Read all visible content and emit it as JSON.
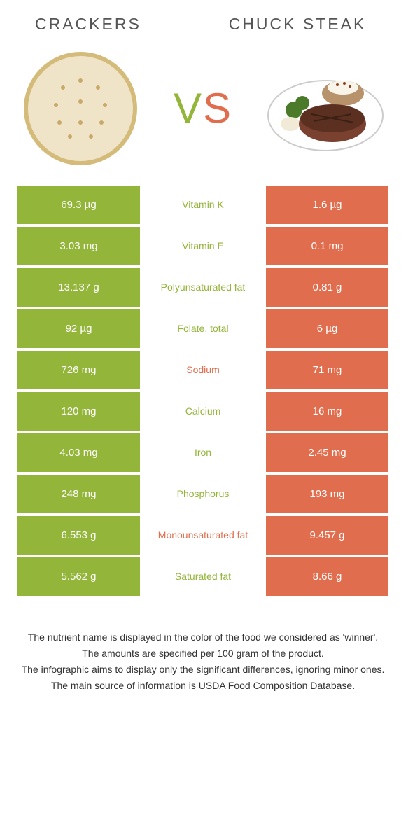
{
  "header": {
    "left_title": "Crackers",
    "right_title": "Chuck Steak",
    "vs_v": "V",
    "vs_s": "S"
  },
  "colors": {
    "left": "#93b53a",
    "right": "#e06d4d",
    "text": "#555555"
  },
  "rows": [
    {
      "left": "69.3 µg",
      "label": "Vitamin K",
      "right": "1.6 µg",
      "winner": "left"
    },
    {
      "left": "3.03 mg",
      "label": "Vitamin E",
      "right": "0.1 mg",
      "winner": "left"
    },
    {
      "left": "13.137 g",
      "label": "Polyunsaturated fat",
      "right": "0.81 g",
      "winner": "left"
    },
    {
      "left": "92 µg",
      "label": "Folate, total",
      "right": "6 µg",
      "winner": "left"
    },
    {
      "left": "726 mg",
      "label": "Sodium",
      "right": "71 mg",
      "winner": "right"
    },
    {
      "left": "120 mg",
      "label": "Calcium",
      "right": "16 mg",
      "winner": "left"
    },
    {
      "left": "4.03 mg",
      "label": "Iron",
      "right": "2.45 mg",
      "winner": "left"
    },
    {
      "left": "248 mg",
      "label": "Phosphorus",
      "right": "193 mg",
      "winner": "left"
    },
    {
      "left": "6.553 g",
      "label": "Monounsaturated fat",
      "right": "9.457 g",
      "winner": "right"
    },
    {
      "left": "5.562 g",
      "label": "Saturated fat",
      "right": "8.66 g",
      "winner": "left"
    }
  ],
  "footer": {
    "line1": "The nutrient name is displayed in the color of the food we considered as 'winner'.",
    "line2": "The amounts are specified per 100 gram of the product.",
    "line3": "The infographic aims to display only the significant differences, ignoring minor ones.",
    "line4": "The main source of information is USDA Food Composition Database."
  }
}
